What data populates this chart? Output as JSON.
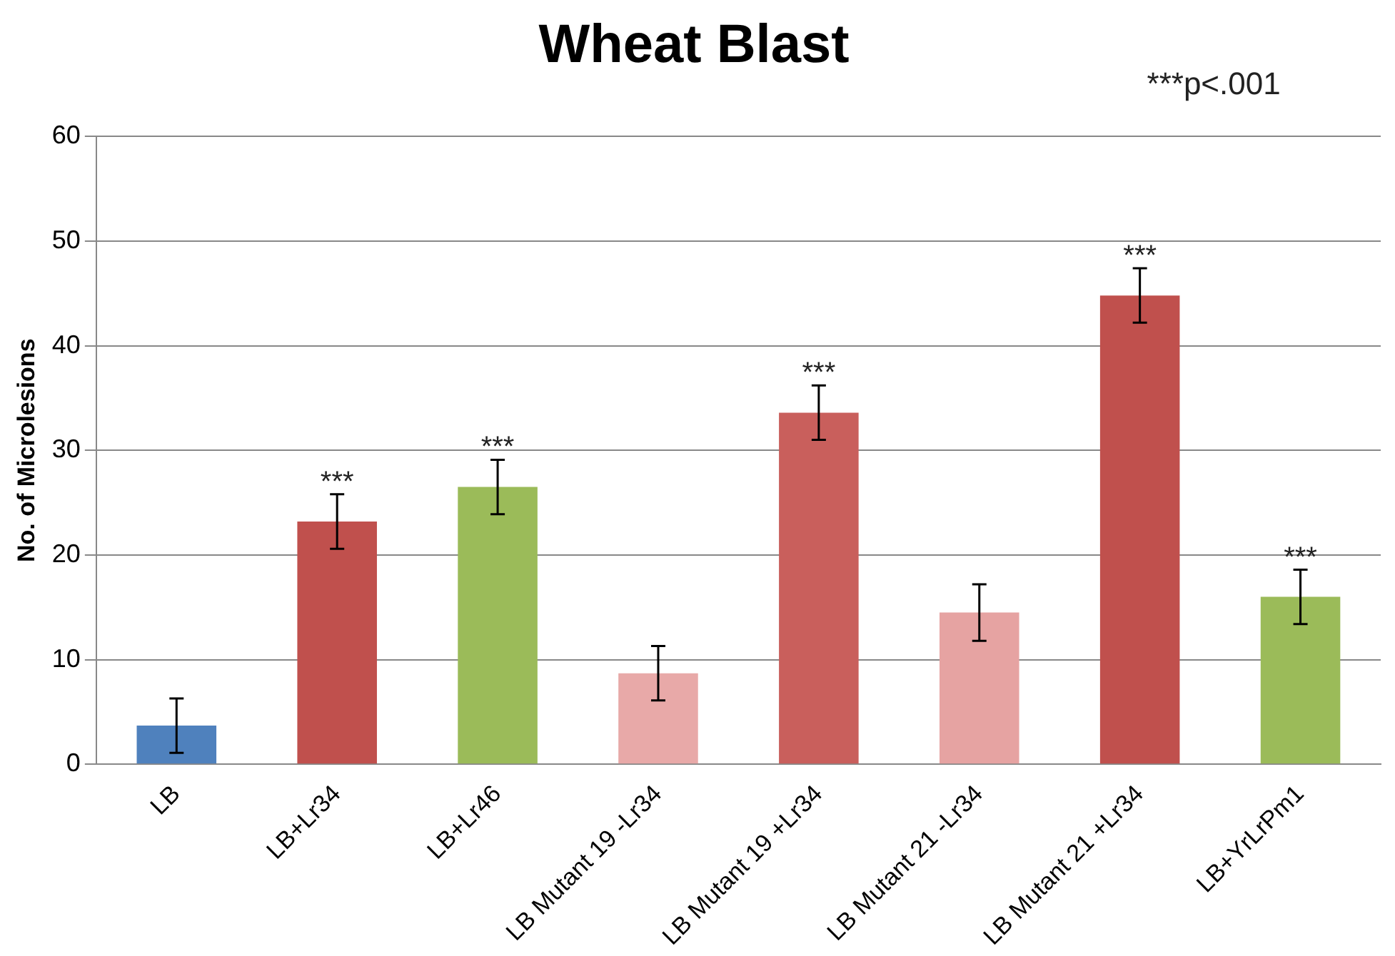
{
  "chart_data": {
    "type": "bar",
    "title": "Wheat Blast",
    "ylabel": "No. of Microlesions",
    "categories": [
      "LB",
      "LB+Lr34",
      "LB+Lr46",
      "LB Mutant 19 -Lr34",
      "LB Mutant 19 +Lr34",
      "LB Mutant 21 -Lr34",
      "LB Mutant 21 +Lr34",
      "LB+YrLrPm1"
    ],
    "values": [
      3.7,
      23.2,
      26.5,
      8.7,
      33.6,
      14.5,
      44.8,
      16.0
    ],
    "errors": [
      2.6,
      2.6,
      2.6,
      2.6,
      2.6,
      2.7,
      2.6,
      2.6
    ],
    "colors": [
      "#4f81bd",
      "#c0504d",
      "#9bbb59",
      "#e8a9a8",
      "#c95f5c",
      "#e6a3a2",
      "#c0504d",
      "#9bbb59"
    ],
    "ylim": [
      0,
      60
    ],
    "yticks": [
      0,
      10,
      20,
      30,
      40,
      50,
      60
    ],
    "grid": "y",
    "legend": false,
    "annotations": [
      {
        "text": "***",
        "x": "LB+Lr34",
        "y": 25.8
      },
      {
        "text": "***",
        "x": "LB+Lr46",
        "y": 29.1
      },
      {
        "text": "***",
        "x": "LB Mutant 19 +Lr34",
        "y": 36.2
      },
      {
        "text": "***",
        "x": "LB Mutant 21 +Lr34",
        "y": 47.4
      },
      {
        "text": "***",
        "x": "LB+YrLrPm1",
        "y": 18.6
      },
      "***p<.001"
    ]
  }
}
